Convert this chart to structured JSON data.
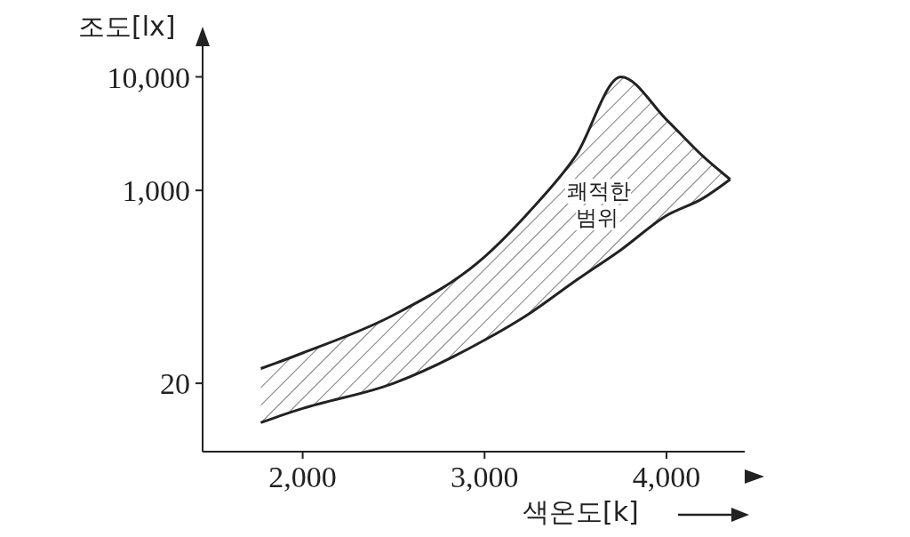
{
  "chart_data": {
    "type": "area",
    "xlabel": "색온도[k]",
    "ylabel": "조도[lx]",
    "x": [
      1770,
      1850,
      2000,
      2500,
      3000,
      3250,
      3500,
      3750,
      4000,
      4200,
      4350
    ],
    "series": [
      {
        "color": "#222222",
        "values": [
          27,
          30,
          37,
          80,
          260,
          660,
          2000,
          10000,
          4200,
          2000,
          1250
        ]
      },
      {
        "type": "line",
        "color": "#222222",
        "values": [
          9,
          10,
          12,
          20,
          48,
          83,
          160,
          300,
          600,
          850,
          1250
        ]
      }
    ],
    "log": "y",
    "xlim": [
      1450,
      4430
    ],
    "xticks": [
      {
        "value": 2000,
        "label": "2,000"
      },
      {
        "value": 3000,
        "label": "3,000"
      },
      {
        "value": 4000,
        "label": "4,000"
      }
    ],
    "ylim": [
      5,
      20000
    ],
    "yticks": [
      {
        "value": 20,
        "label": "20"
      },
      {
        "value": 1000,
        "label": "1,000"
      },
      {
        "value": 10000,
        "label": "10,000"
      }
    ],
    "annotations": [
      "쾌적한 범위"
    ],
    "grid": false,
    "legend": false
  }
}
